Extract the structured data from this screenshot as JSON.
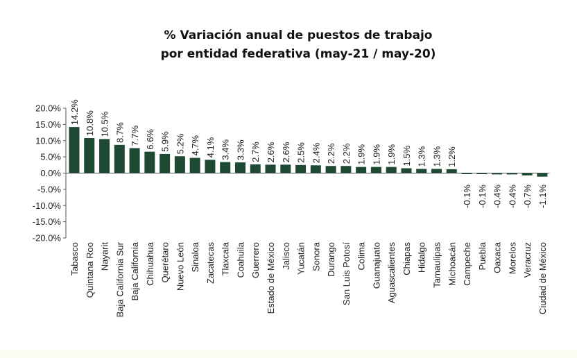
{
  "chart_data": {
    "type": "bar",
    "title_lines": [
      "% Variación anual de puestos de trabajo",
      "por entidad federativa (may-21 / may-20)"
    ],
    "categories": [
      "Tabasco",
      "Quintana Roo",
      "Nayarit",
      "Baja California Sur",
      "Baja California",
      "Chihuahua",
      "Querétaro",
      "Nuevo León",
      "Sinaloa",
      "Zacatecas",
      "Tlaxcala",
      "Coahuila",
      "Guerrero",
      "Estado de México",
      "Jalisco",
      "Yucatán",
      "Sonora",
      "Durango",
      "San Luis Potosí",
      "Colima",
      "Guanajuato",
      "Aguascalientes",
      "Chiapas",
      "Hidalgo",
      "Tamaulipas",
      "Michoacán",
      "Campeche",
      "Puebla",
      "Oaxaca",
      "Morelos",
      "Veracruz",
      "Ciudad de México"
    ],
    "values": [
      14.2,
      10.8,
      10.5,
      8.7,
      7.7,
      6.6,
      5.9,
      5.2,
      4.7,
      4.1,
      3.4,
      3.3,
      2.7,
      2.6,
      2.6,
      2.5,
      2.4,
      2.2,
      2.2,
      1.9,
      1.9,
      1.9,
      1.5,
      1.3,
      1.3,
      1.2,
      -0.1,
      -0.1,
      -0.4,
      -0.4,
      -0.7,
      -1.1
    ],
    "data_labels": [
      "14.2%",
      "10.8%",
      "10.5%",
      "8.7%",
      "7.7%",
      "6.6%",
      "5.9%",
      "5.2%",
      "4.7%",
      "4.1%",
      "3.4%",
      "3.3%",
      "2.7%",
      "2.6%",
      "2.6%",
      "2.5%",
      "2.4%",
      "2.2%",
      "2.2%",
      "1.9%",
      "1.9%",
      "1.9%",
      "1.5%",
      "1.3%",
      "1.3%",
      "1.2%",
      "-0.1%",
      "-0.1%",
      "-0.4%",
      "-0.4%",
      "-0.7%",
      "-1.1%"
    ],
    "y_ticks": [
      "20.0%",
      "15.0%",
      "10.0%",
      "5.0%",
      "0.0%",
      "-5.0%",
      "-10.0%",
      "-15.0%",
      "-20.0%"
    ],
    "ylim": [
      -20,
      20
    ],
    "grid": false,
    "legend": "none",
    "bar_color": "#1e4a33"
  }
}
